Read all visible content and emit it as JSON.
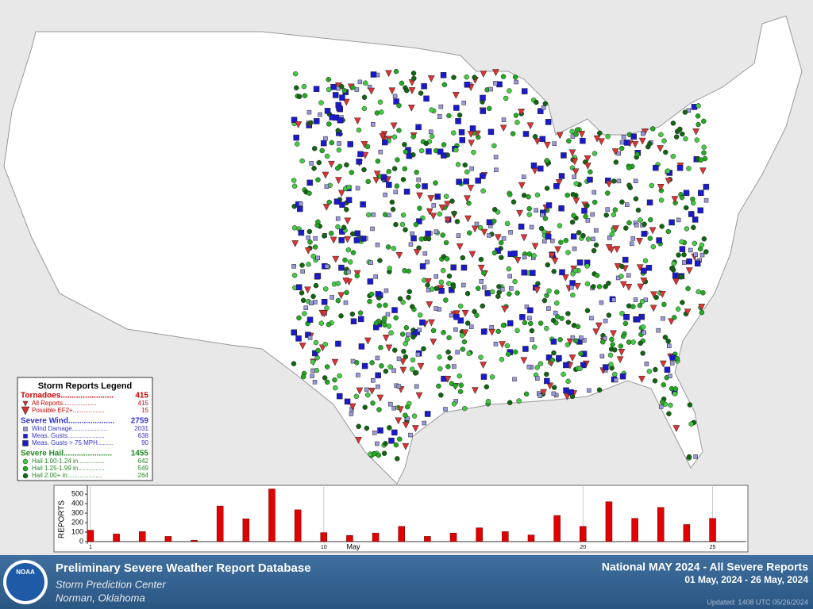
{
  "header": {
    "logo": "NOAA",
    "title": "Preliminary Severe Weather Report Database",
    "org": "Storm Prediction Center",
    "location": "Norman, Oklahoma"
  },
  "report": {
    "title": "National MAY 2024 - All Severe Reports",
    "range": "01 May, 2024 - 26 May, 2024",
    "updated": "Updated: 1408 UTC 05/26/2024"
  },
  "legend": {
    "title": "Storm Reports Legend",
    "groups": [
      {
        "name": "Tornadoes........................",
        "total": 415,
        "items": [
          {
            "label": "All Reports...................",
            "count": 415
          },
          {
            "label": "Possible EF2+..................",
            "count": 15
          }
        ]
      },
      {
        "name": "Severe Wind.....................",
        "total": 2759,
        "items": [
          {
            "label": "Wind Damage....................",
            "count": 2031
          },
          {
            "label": "Meas. Gusts.....................",
            "count": 638
          },
          {
            "label": "Meas. Gusts > 75 MPH.........",
            "count": 90
          }
        ]
      },
      {
        "name": "Severe Hail......................",
        "total": 1455,
        "items": [
          {
            "label": "Hail 1.00-1.24 in...............",
            "count": 642
          },
          {
            "label": "Hail 1.25-1.99 in...............",
            "count": 549
          },
          {
            "label": "Hail 2.00+ in....................",
            "count": 264
          }
        ]
      }
    ]
  },
  "chart_data": {
    "type": "bar",
    "ylabel": "REPORTS",
    "xlabel": "May",
    "color": "#e00000",
    "x": [
      1,
      2,
      3,
      4,
      5,
      6,
      7,
      8,
      9,
      10,
      11,
      12,
      13,
      14,
      15,
      16,
      17,
      18,
      19,
      20,
      21,
      22,
      23,
      24,
      25
    ],
    "values": [
      120,
      80,
      105,
      55,
      15,
      375,
      240,
      555,
      335,
      95,
      65,
      90,
      160,
      55,
      90,
      145,
      105,
      70,
      275,
      160,
      420,
      245,
      360,
      180,
      245
    ],
    "xlim": [
      0.88,
      26.3
    ],
    "xticks": [
      1,
      10,
      20,
      25
    ],
    "ylim": [
      0,
      560
    ],
    "yticks": [
      0,
      100,
      200,
      300,
      400,
      500
    ],
    "grid": true
  }
}
